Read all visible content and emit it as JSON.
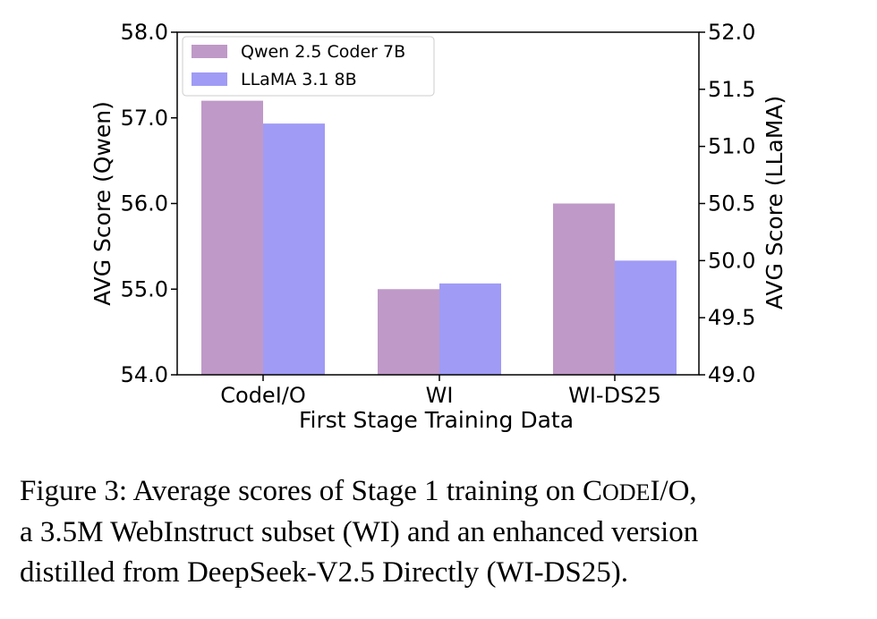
{
  "chart_data": {
    "type": "bar",
    "categories": [
      "CodeI/O",
      "WI",
      "WI-DS25"
    ],
    "xlabel": "First Stage Training Data",
    "series": [
      {
        "name": "Qwen 2.5 Coder 7B",
        "axis": "left",
        "color": "#bf99c8",
        "values": [
          57.2,
          55.0,
          56.0
        ]
      },
      {
        "name": "LLaMA 3.1 8B",
        "axis": "right",
        "color": "#a09bf5",
        "values": [
          51.2,
          49.8,
          50.0
        ]
      }
    ],
    "y_left": {
      "label": "AVG Score (Qwen)",
      "ylim": [
        54.0,
        58.0
      ],
      "ticks": [
        "54.0",
        "55.0",
        "56.0",
        "57.0",
        "58.0"
      ]
    },
    "y_right": {
      "label": "AVG Score (LLaMA)",
      "ylim": [
        49.0,
        52.0
      ],
      "ticks": [
        "49.0",
        "49.5",
        "50.0",
        "50.5",
        "51.0",
        "51.5",
        "52.0"
      ]
    },
    "legend_position": "top-left",
    "grid": false
  },
  "caption": {
    "line1_a": "Figure 3: Average scores of Stage 1 training on ",
    "line1_code_big1": "C",
    "line1_code_small": "ODE",
    "line1_code_big2": "I/O,",
    "line2": "a 3.5M WebInstruct subset (WI) and an enhanced version",
    "line3": "distilled from DeepSeek-V2.5 Directly (WI-DS25)."
  }
}
